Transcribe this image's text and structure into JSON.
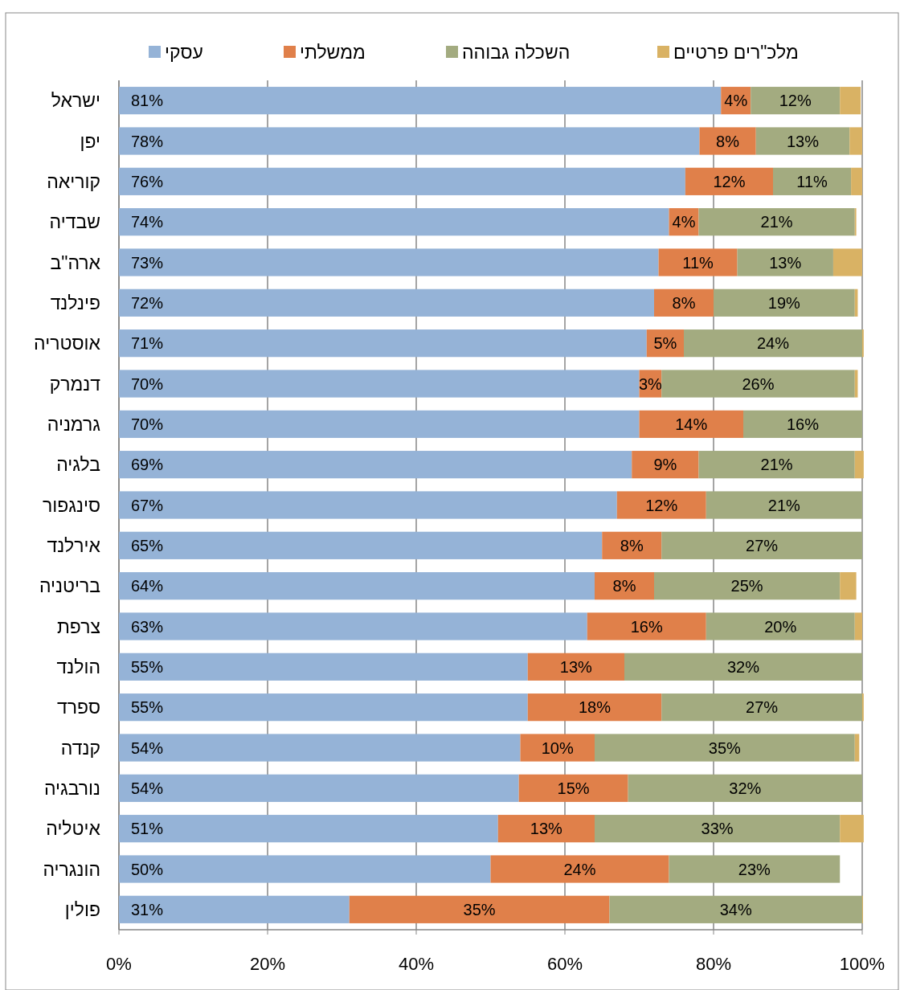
{
  "chart_data": {
    "type": "bar",
    "orientation": "horizontal",
    "stacked": true,
    "categories": [
      "ישראל",
      "יפן",
      "קוריאה",
      "שבדיה",
      "ארה\"ב",
      "פינלנד",
      "אוסטריה",
      "דנמרק",
      "גרמניה",
      "בלגיה",
      "סינגפור",
      "אירלנד",
      "בריטניה",
      "צרפת",
      "הולנד",
      "ספרד",
      "קנדה",
      "נורבגיה",
      "איטליה",
      "הונגריה",
      "פולין"
    ],
    "series": [
      {
        "name": "עסקי",
        "color": "#95b3d7",
        "values": [
          81,
          78.1,
          76.2,
          74,
          72.6,
          72,
          71,
          70,
          70,
          69,
          67,
          65,
          64,
          63,
          55,
          55,
          54,
          53.8,
          51,
          50,
          31
        ],
        "value_labels": [
          "81%",
          "78%",
          "76%",
          "74%",
          "73%",
          "72%",
          "71%",
          "70%",
          "70%",
          "69%",
          "67%",
          "65%",
          "64%",
          "63%",
          "55%",
          "55%",
          "54%",
          "54%",
          "51%",
          "50%",
          "31%"
        ]
      },
      {
        "name": "ממשלתי",
        "color": "#e0804a",
        "values": [
          4,
          7.6,
          11.8,
          4,
          10.6,
          8,
          5,
          3,
          14,
          9,
          12,
          8,
          8,
          16,
          13,
          18,
          10,
          14.7,
          13,
          24,
          35
        ],
        "value_labels": [
          "4%",
          "8%",
          "12%",
          "4%",
          "11%",
          "8%",
          "5%",
          "3%",
          "14%",
          "9%",
          "12%",
          "8%",
          "8%",
          "16%",
          "13%",
          "18%",
          "10%",
          "15%",
          "13%",
          "24%",
          "35%"
        ]
      },
      {
        "name": "השכלה גבוהה",
        "color": "#a3ab80",
        "values": [
          12,
          12.6,
          10.5,
          21,
          12.9,
          19,
          24,
          26,
          16,
          21,
          21,
          27,
          25,
          20,
          32,
          27,
          35,
          31.5,
          33,
          23,
          34
        ],
        "value_labels": [
          "12%",
          "13%",
          "11%",
          "21%",
          "13%",
          "19%",
          "24%",
          "26%",
          "16%",
          "21%",
          "21%",
          "27%",
          "25%",
          "20%",
          "32%",
          "27%",
          "35%",
          "32%",
          "33%",
          "23%",
          "34%"
        ]
      },
      {
        "name": "מלכ\"רים פרטיים",
        "color": "#d9b264",
        "values": [
          2.8,
          1.7,
          1.5,
          0.2,
          3.9,
          0.4,
          0.2,
          0.4,
          0,
          1.2,
          0,
          0,
          2.2,
          1,
          0,
          0.2,
          0.6,
          0,
          3.2,
          0,
          0.1
        ]
      }
    ],
    "xlim": [
      0,
      100
    ],
    "xticks": [
      {
        "value": 0,
        "label": "0%"
      },
      {
        "value": 20,
        "label": "20%"
      },
      {
        "value": 40,
        "label": "40%"
      },
      {
        "value": 60,
        "label": "60%"
      },
      {
        "value": 80,
        "label": "80%"
      },
      {
        "value": 100,
        "label": "100%"
      }
    ],
    "grid": "x",
    "legend": "top"
  }
}
